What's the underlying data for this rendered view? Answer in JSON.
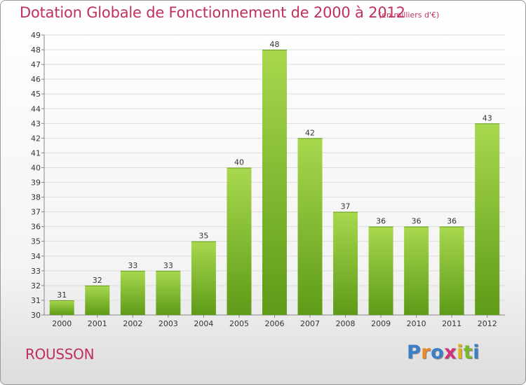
{
  "title": "Dotation Globale de Fonctionnement de 2000 à 2012",
  "subtitle": "(en milliers d'€)",
  "commune": "ROUSSON",
  "logo": {
    "letters": [
      "P",
      "r",
      "o",
      "x",
      "i",
      "t",
      "i"
    ]
  },
  "colors": {
    "title": "#c0305a",
    "bar_top": "#a8d84e",
    "bar_bottom": "#5e9b18",
    "grid": "#dddddd",
    "logo_letters": [
      "#3a7fc8",
      "#e8892a",
      "#3a7fc8",
      "#d3307a",
      "#e2b21e",
      "#79b829",
      "#3a7fc8"
    ]
  },
  "chart_data": {
    "type": "bar",
    "categories": [
      "2000",
      "2001",
      "2002",
      "2003",
      "2004",
      "2005",
      "2006",
      "2007",
      "2008",
      "2009",
      "2010",
      "2011",
      "2012"
    ],
    "values": [
      31,
      32,
      33,
      33,
      35,
      40,
      48,
      42,
      37,
      36,
      36,
      36,
      43
    ],
    "ylim": [
      30,
      49
    ],
    "yticks": [
      30,
      31,
      32,
      33,
      34,
      35,
      36,
      37,
      38,
      39,
      40,
      41,
      42,
      43,
      44,
      45,
      46,
      47,
      48,
      49
    ],
    "grid": true,
    "xlabel": "",
    "ylabel": ""
  }
}
